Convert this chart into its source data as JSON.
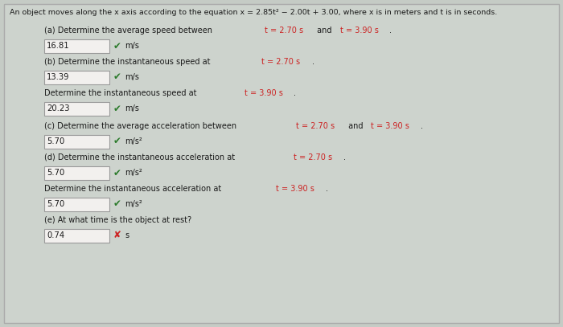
{
  "bg_color": "#c5cbc5",
  "panel_bg": "#cdd3cd",
  "title": "An object moves along the x axis according to the equation x = 2.85t² − 2.00t + 3.00, where x is in meters and t is in seconds.",
  "questions": [
    {
      "label_parts": [
        {
          "text": "(a) Determine the average speed between ",
          "red": false
        },
        {
          "text": "t = 2.70 s",
          "red": true
        },
        {
          "text": " and ",
          "red": false
        },
        {
          "text": "t = 3.90 s",
          "red": true
        },
        {
          "text": ".",
          "red": false
        }
      ],
      "answer": "16.81",
      "unit": "m/s",
      "correct": true,
      "wrong": false
    },
    {
      "label_parts": [
        {
          "text": "(b) Determine the instantaneous speed at ",
          "red": false
        },
        {
          "text": "t = 2.70 s",
          "red": true
        },
        {
          "text": ".",
          "red": false
        }
      ],
      "answer": "13.39",
      "unit": "m/s",
      "correct": true,
      "wrong": false
    },
    {
      "label_parts": [
        {
          "text": "Determine the instantaneous speed at ",
          "red": false
        },
        {
          "text": "t = 3.90 s",
          "red": true
        },
        {
          "text": ".",
          "red": false
        }
      ],
      "answer": "20.23",
      "unit": "m/s",
      "correct": true,
      "wrong": false
    },
    {
      "label_parts": [
        {
          "text": "(c) Determine the average acceleration between ",
          "red": false
        },
        {
          "text": "t = 2.70 s",
          "red": true
        },
        {
          "text": " and ",
          "red": false
        },
        {
          "text": "t = 3.90 s",
          "red": true
        },
        {
          "text": ".",
          "red": false
        }
      ],
      "answer": "5.70",
      "unit": "m/s²",
      "correct": true,
      "wrong": false
    },
    {
      "label_parts": [
        {
          "text": "(d) Determine the instantaneous acceleration at ",
          "red": false
        },
        {
          "text": "t = 2.70 s",
          "red": true
        },
        {
          "text": ".",
          "red": false
        }
      ],
      "answer": "5.70",
      "unit": "m/s²",
      "correct": true,
      "wrong": false
    },
    {
      "label_parts": [
        {
          "text": "Determine the instantaneous acceleration at ",
          "red": false
        },
        {
          "text": "t = 3.90 s",
          "red": true
        },
        {
          "text": ".",
          "red": false
        }
      ],
      "answer": "5.70",
      "unit": "m/s²",
      "correct": true,
      "wrong": false
    },
    {
      "label_parts": [
        {
          "text": "(e) At what time is the object at rest?",
          "red": false
        }
      ],
      "answer": "0.74",
      "unit": "s",
      "correct": false,
      "wrong": true
    }
  ],
  "check_color": "#2a7a2a",
  "wrong_color": "#cc2222",
  "text_color": "#1a1a1a",
  "red_highlight": "#cc2222",
  "box_bg": "#f2f0ee",
  "box_border": "#9a9a9a"
}
